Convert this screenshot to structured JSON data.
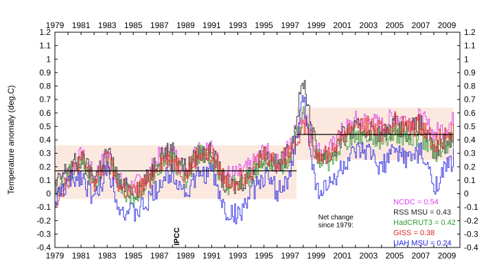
{
  "chart_data": {
    "type": "line",
    "title": "",
    "xlabel": "",
    "ylabel": "Temperature anomaly (deg.C)",
    "xlim": [
      1979,
      2010
    ],
    "ylim": [
      -0.4,
      1.2
    ],
    "x_ticks": [
      "1979",
      "1981",
      "1983",
      "1985",
      "1987",
      "1989",
      "1991",
      "1993",
      "1995",
      "1997",
      "1999",
      "2001",
      "2003",
      "2005",
      "2007",
      "2009"
    ],
    "y_ticks": [
      "-0.4",
      "-0.3",
      "-0.2",
      "-0.1",
      "0",
      "0.1",
      "0.2",
      "0.3",
      "0.4",
      "0.5",
      "0.6",
      "0.7",
      "0.8",
      "0.9",
      "1",
      "1.1",
      "1.2"
    ],
    "grid": false,
    "mean_lines": [
      {
        "x": [
          1979,
          1997.5
        ],
        "y": 0.17
      },
      {
        "x": [
          1997.5,
          2009.5
        ],
        "y": 0.44
      }
    ],
    "bands": [
      {
        "x": [
          1979,
          1997.5
        ],
        "y": [
          -0.04,
          0.36
        ],
        "color": "#fbe9e0"
      },
      {
        "x": [
          1997.5,
          2009.5
        ],
        "y": [
          0.25,
          0.64
        ],
        "color": "#fbe9e0"
      }
    ],
    "annotations": [
      {
        "text": "IPCC",
        "x": 1988.5,
        "y": -0.4,
        "rotation": -90
      },
      {
        "text": "Net change",
        "x": 2000.5,
        "y": -0.19
      },
      {
        "text": "since 1979:",
        "x": 2000.5,
        "y": -0.25
      }
    ],
    "legend": {
      "placement": "bottom-right",
      "entries": [
        {
          "text": "NCDC = 0.54",
          "color": "#e03cf0"
        },
        {
          "text": "RSS MSU = 0.43",
          "color": "#222222"
        },
        {
          "text": "HadCRUT3 = 0.42",
          "color": "#2e9a2e"
        },
        {
          "text": "GISS = 0.38",
          "color": "#e02020"
        },
        {
          "text": "UAH MSU = 0.24",
          "color": "#2020e0"
        }
      ]
    },
    "series": [
      {
        "color": "#e03cf0",
        "key": [
          [
            1979,
            0.02
          ],
          [
            1980,
            0.15
          ],
          [
            1981,
            0.28
          ],
          [
            1982,
            0.12
          ],
          [
            1983,
            0.3
          ],
          [
            1984,
            0.08
          ],
          [
            1985,
            0.05
          ],
          [
            1986,
            0.12
          ],
          [
            1987,
            0.28
          ],
          [
            1988,
            0.3
          ],
          [
            1989,
            0.18
          ],
          [
            1990,
            0.36
          ],
          [
            1991,
            0.32
          ],
          [
            1992,
            0.14
          ],
          [
            1993,
            0.14
          ],
          [
            1994,
            0.2
          ],
          [
            1995,
            0.32
          ],
          [
            1996,
            0.22
          ],
          [
            1997,
            0.36
          ],
          [
            1998,
            0.62
          ],
          [
            1999,
            0.32
          ],
          [
            2000,
            0.32
          ],
          [
            2001,
            0.46
          ],
          [
            2002,
            0.54
          ],
          [
            2003,
            0.54
          ],
          [
            2004,
            0.5
          ],
          [
            2005,
            0.58
          ],
          [
            2006,
            0.54
          ],
          [
            2007,
            0.56
          ],
          [
            2008,
            0.44
          ],
          [
            2009.5,
            0.54
          ]
        ]
      },
      {
        "color": "#222222",
        "key": [
          [
            1979,
            0.05
          ],
          [
            1980,
            0.2
          ],
          [
            1981,
            0.25
          ],
          [
            1982,
            0.12
          ],
          [
            1983,
            0.32
          ],
          [
            1984,
            0.05
          ],
          [
            1985,
            0.02
          ],
          [
            1986,
            0.1
          ],
          [
            1987,
            0.3
          ],
          [
            1988,
            0.32
          ],
          [
            1989,
            0.18
          ],
          [
            1990,
            0.3
          ],
          [
            1991,
            0.3
          ],
          [
            1992,
            0.06
          ],
          [
            1993,
            0.06
          ],
          [
            1994,
            0.16
          ],
          [
            1995,
            0.3
          ],
          [
            1996,
            0.2
          ],
          [
            1997,
            0.32
          ],
          [
            1998,
            0.85
          ],
          [
            1999,
            0.3
          ],
          [
            2000,
            0.26
          ],
          [
            2001,
            0.42
          ],
          [
            2002,
            0.48
          ],
          [
            2003,
            0.48
          ],
          [
            2004,
            0.42
          ],
          [
            2005,
            0.52
          ],
          [
            2006,
            0.46
          ],
          [
            2007,
            0.52
          ],
          [
            2008,
            0.3
          ],
          [
            2009.5,
            0.43
          ]
        ]
      },
      {
        "color": "#2e9a2e",
        "key": [
          [
            1979,
            0.0
          ],
          [
            1980,
            0.14
          ],
          [
            1981,
            0.24
          ],
          [
            1982,
            0.08
          ],
          [
            1983,
            0.26
          ],
          [
            1984,
            0.02
          ],
          [
            1985,
            -0.02
          ],
          [
            1986,
            0.06
          ],
          [
            1987,
            0.22
          ],
          [
            1988,
            0.24
          ],
          [
            1989,
            0.12
          ],
          [
            1990,
            0.3
          ],
          [
            1991,
            0.26
          ],
          [
            1992,
            0.06
          ],
          [
            1993,
            0.08
          ],
          [
            1994,
            0.14
          ],
          [
            1995,
            0.26
          ],
          [
            1996,
            0.16
          ],
          [
            1997,
            0.3
          ],
          [
            1998,
            0.6
          ],
          [
            1999,
            0.26
          ],
          [
            2000,
            0.24
          ],
          [
            2001,
            0.38
          ],
          [
            2002,
            0.44
          ],
          [
            2003,
            0.44
          ],
          [
            2004,
            0.4
          ],
          [
            2005,
            0.46
          ],
          [
            2006,
            0.42
          ],
          [
            2007,
            0.42
          ],
          [
            2008,
            0.3
          ],
          [
            2009.5,
            0.42
          ]
        ]
      },
      {
        "color": "#e02020",
        "key": [
          [
            1979,
            -0.05
          ],
          [
            1980,
            0.12
          ],
          [
            1981,
            0.26
          ],
          [
            1982,
            0.06
          ],
          [
            1983,
            0.24
          ],
          [
            1984,
            0.04
          ],
          [
            1985,
            0.0
          ],
          [
            1986,
            0.08
          ],
          [
            1987,
            0.24
          ],
          [
            1988,
            0.26
          ],
          [
            1989,
            0.14
          ],
          [
            1990,
            0.3
          ],
          [
            1991,
            0.28
          ],
          [
            1992,
            0.1
          ],
          [
            1993,
            0.1
          ],
          [
            1994,
            0.18
          ],
          [
            1995,
            0.3
          ],
          [
            1996,
            0.22
          ],
          [
            1997,
            0.32
          ],
          [
            1998,
            0.52
          ],
          [
            1999,
            0.3
          ],
          [
            2000,
            0.3
          ],
          [
            2001,
            0.44
          ],
          [
            2002,
            0.52
          ],
          [
            2003,
            0.5
          ],
          [
            2004,
            0.46
          ],
          [
            2005,
            0.54
          ],
          [
            2006,
            0.48
          ],
          [
            2007,
            0.52
          ],
          [
            2008,
            0.38
          ],
          [
            2009.5,
            0.46
          ]
        ]
      },
      {
        "color": "#2020e0",
        "key": [
          [
            1979,
            -0.05
          ],
          [
            1980,
            0.08
          ],
          [
            1981,
            0.14
          ],
          [
            1982,
            -0.05
          ],
          [
            1983,
            0.2
          ],
          [
            1984,
            -0.12
          ],
          [
            1985,
            -0.15
          ],
          [
            1986,
            -0.08
          ],
          [
            1987,
            0.08
          ],
          [
            1988,
            0.16
          ],
          [
            1989,
            0.0
          ],
          [
            1990,
            0.14
          ],
          [
            1991,
            0.16
          ],
          [
            1992,
            -0.14
          ],
          [
            1993,
            -0.16
          ],
          [
            1994,
            0.0
          ],
          [
            1995,
            0.14
          ],
          [
            1996,
            0.02
          ],
          [
            1997,
            0.12
          ],
          [
            1998,
            0.72
          ],
          [
            1999,
            0.02
          ],
          [
            2000,
            0.06
          ],
          [
            2001,
            0.2
          ],
          [
            2002,
            0.3
          ],
          [
            2003,
            0.3
          ],
          [
            2004,
            0.2
          ],
          [
            2005,
            0.32
          ],
          [
            2006,
            0.26
          ],
          [
            2007,
            0.3
          ],
          [
            2008,
            0.06
          ],
          [
            2009.5,
            0.26
          ]
        ]
      }
    ]
  }
}
